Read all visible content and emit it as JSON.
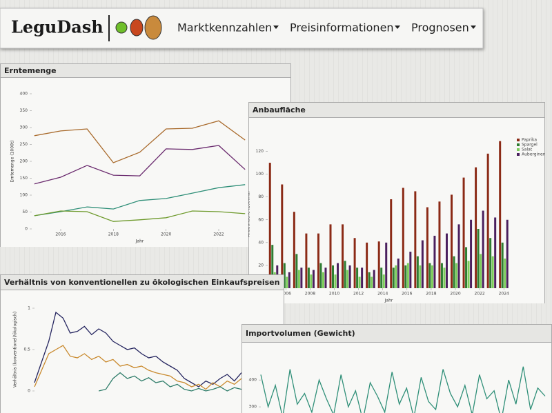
{
  "header": {
    "logo": "LeguDash",
    "nav": [
      "Marktkennzahlen",
      "Preisinformationen",
      "Prognosen"
    ]
  },
  "chart_data": [
    {
      "type": "line",
      "title": "Erntemenge",
      "x_label": "Jahr",
      "y_label": "Erntemenge (1000t)",
      "x": [
        2015,
        2016,
        2017,
        2018,
        2019,
        2020,
        2021,
        2022,
        2023
      ],
      "xlim": [
        2014.9,
        2023.1
      ],
      "xticks": [
        2016,
        2018,
        2020,
        2022
      ],
      "ylim": [
        0,
        400
      ],
      "yticks": [
        0,
        50,
        100,
        150,
        200,
        250,
        300,
        350,
        400
      ],
      "series": [
        {
          "color": "#a8692a",
          "values": [
            276,
            290,
            296,
            196,
            227,
            296,
            298,
            320,
            263
          ]
        },
        {
          "color": "#6a2a6e",
          "values": [
            133,
            153,
            188,
            159,
            157,
            237,
            235,
            247,
            176
          ]
        },
        {
          "color": "#2f8f78",
          "values": [
            39,
            51,
            65,
            59,
            84,
            90,
            106,
            122,
            131
          ]
        },
        {
          "color": "#6e9a2c",
          "values": [
            39,
            53,
            51,
            22,
            27,
            33,
            53,
            51,
            45
          ]
        }
      ]
    },
    {
      "type": "bar",
      "title": "Anbaufläche",
      "x_label": "Jahr",
      "y_label": "Anbaufläche (1000ha)",
      "x": [
        2005,
        2006,
        2007,
        2008,
        2009,
        2010,
        2011,
        2012,
        2013,
        2014,
        2015,
        2016,
        2017,
        2018,
        2019,
        2020,
        2021,
        2022,
        2023,
        2024
      ],
      "xlim": [
        2004.5,
        2024.5
      ],
      "xticks": [
        2006,
        2008,
        2010,
        2012,
        2014,
        2016,
        2018,
        2020,
        2022,
        2024
      ],
      "ylim": [
        0,
        130
      ],
      "yticks": [
        0,
        20,
        40,
        60,
        80,
        100,
        120
      ],
      "legend": "top-right",
      "series": [
        {
          "name": "Paprika",
          "color": "#8b2a16",
          "values": [
            110,
            91,
            67,
            48,
            48,
            56,
            56,
            44,
            40,
            41,
            78,
            88,
            85,
            71,
            76,
            82,
            97,
            106,
            118,
            129
          ]
        },
        {
          "name": "Spargel",
          "color": "#2e7d32",
          "values": [
            38,
            22,
            30,
            18,
            22,
            20,
            24,
            18,
            14,
            18,
            18,
            20,
            28,
            22,
            22,
            28,
            36,
            52,
            44,
            40
          ]
        },
        {
          "name": "Salat",
          "color": "#7ccd5a",
          "values": [
            14,
            10,
            16,
            12,
            14,
            12,
            16,
            10,
            10,
            12,
            20,
            22,
            20,
            20,
            18,
            22,
            24,
            30,
            28,
            26
          ]
        },
        {
          "name": "Auberginen",
          "color": "#4a1f5e",
          "values": [
            20,
            14,
            18,
            16,
            18,
            22,
            20,
            18,
            16,
            40,
            26,
            32,
            42,
            46,
            48,
            56,
            60,
            68,
            62,
            60
          ]
        }
      ]
    },
    {
      "type": "line",
      "title": "Verhältnis von konventionellen zu ökologischen Einkaufspreisen",
      "y_label": "Verhältnis (konventionell/ökologisch)",
      "ylim": [
        0,
        1
      ],
      "yticks": [
        0,
        0.5,
        1
      ],
      "series": [
        {
          "color": "#23235e",
          "values": [
            0.1,
            0.35,
            0.6,
            0.95,
            0.88,
            0.7,
            0.72,
            0.78,
            0.68,
            0.75,
            0.7,
            0.6,
            0.55,
            0.5,
            0.52,
            0.45,
            0.4,
            0.42,
            0.35,
            0.3,
            0.25,
            0.15,
            0.1,
            0.05,
            0.12,
            0.08,
            0.15,
            0.2,
            0.12,
            0.22
          ]
        },
        {
          "color": "#c98a2e",
          "values": [
            0.05,
            0.25,
            0.45,
            0.5,
            0.55,
            0.42,
            0.4,
            0.45,
            0.38,
            0.42,
            0.35,
            0.38,
            0.3,
            0.32,
            0.28,
            0.3,
            0.25,
            0.22,
            0.2,
            0.18,
            0.12,
            0.1,
            0.05,
            0.08,
            0.02,
            0.1,
            0.05,
            0.12,
            0.08,
            0.15
          ]
        },
        {
          "color": "#2f7d6a",
          "values": [
            null,
            null,
            null,
            null,
            null,
            null,
            null,
            null,
            null,
            0.0,
            0.02,
            0.15,
            0.22,
            0.15,
            0.18,
            0.12,
            0.16,
            0.1,
            0.12,
            0.05,
            0.08,
            0.02,
            0.0,
            0.03,
            0.0,
            0.02,
            0.05,
            0.0,
            0.04,
            0.02
          ]
        }
      ]
    },
    {
      "type": "line",
      "title": "Importvolumen (Gewicht)",
      "ylim": [
        200,
        480
      ],
      "yticks": [
        300,
        400
      ],
      "series": [
        {
          "color": "#2f8f78",
          "values": [
            420,
            300,
            380,
            260,
            440,
            310,
            350,
            280,
            400,
            330,
            270,
            420,
            300,
            360,
            250,
            390,
            340,
            280,
            430,
            310,
            370,
            260,
            410,
            320,
            290,
            440,
            350,
            300,
            380,
            270,
            420,
            330,
            360,
            250,
            400,
            310,
            450,
            290,
            370,
            340
          ]
        }
      ]
    }
  ]
}
